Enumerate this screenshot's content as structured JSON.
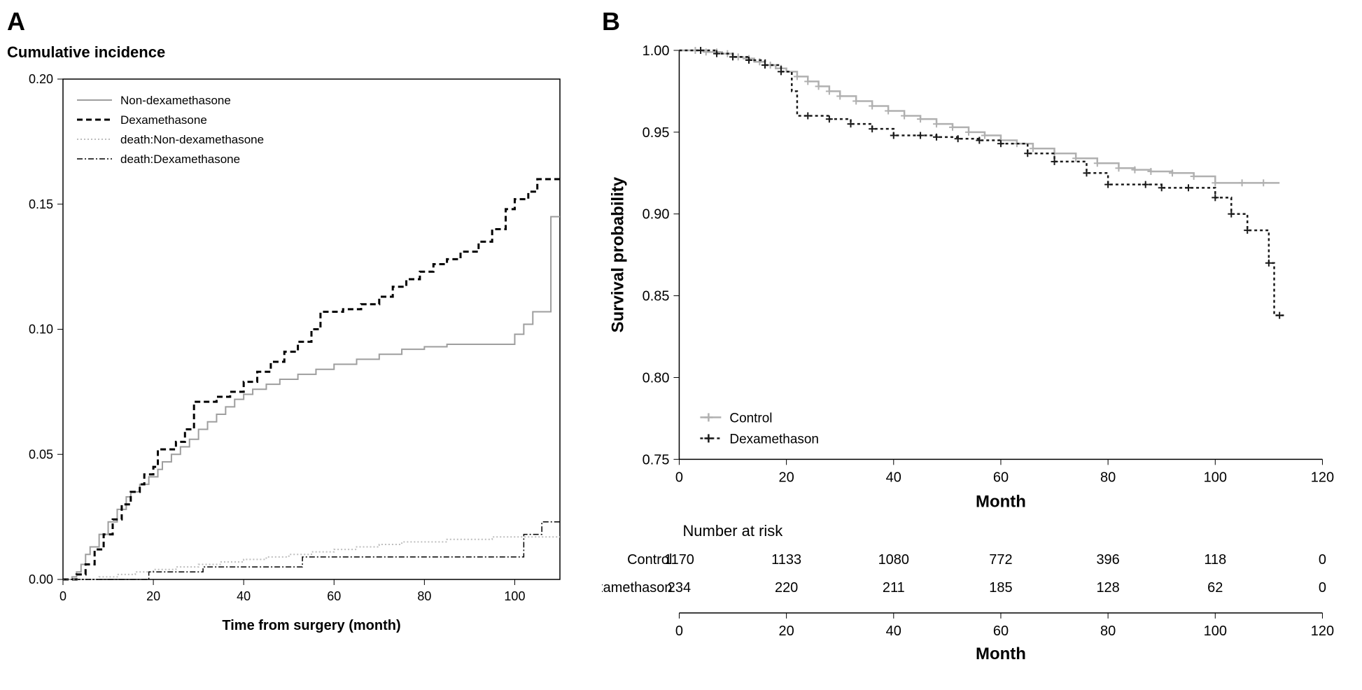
{
  "panelA": {
    "label": "A",
    "title": "Cumulative incidence",
    "type": "step-line",
    "xlabel": "Time from surgery (month)",
    "xlim": [
      0,
      110
    ],
    "xticks": [
      0,
      20,
      40,
      60,
      80,
      100
    ],
    "ylim": [
      0,
      0.2
    ],
    "yticks": [
      0.0,
      0.05,
      0.1,
      0.15,
      0.2
    ],
    "background_color": "#ffffff",
    "box_color": "#000000",
    "tick_fontsize": 18,
    "label_fontsize": 20,
    "label_fontweight": "bold",
    "legend_fontsize": 17,
    "legend": {
      "items": [
        {
          "label": "Non-dexamethasone",
          "color": "#9e9e9e",
          "dash": "solid",
          "width": 2
        },
        {
          "label": "Dexamethasone",
          "color": "#000000",
          "dash": "8,5",
          "width": 3
        },
        {
          "label": "death:Non-dexamethasone",
          "color": "#bdbdbd",
          "dash": "2,3",
          "width": 2
        },
        {
          "label": "death:Dexamethasone",
          "color": "#000000",
          "dash": "8,3,2,3",
          "width": 1.5
        }
      ]
    },
    "series": {
      "non_dex": {
        "color": "#9e9e9e",
        "dash": "none",
        "width": 2,
        "points": [
          [
            0,
            0
          ],
          [
            2,
            0.001
          ],
          [
            3,
            0.003
          ],
          [
            4,
            0.006
          ],
          [
            5,
            0.01
          ],
          [
            6,
            0.013
          ],
          [
            8,
            0.018
          ],
          [
            10,
            0.023
          ],
          [
            12,
            0.028
          ],
          [
            14,
            0.033
          ],
          [
            15,
            0.035
          ],
          [
            17,
            0.038
          ],
          [
            19,
            0.041
          ],
          [
            21,
            0.044
          ],
          [
            22,
            0.047
          ],
          [
            24,
            0.05
          ],
          [
            26,
            0.053
          ],
          [
            28,
            0.056
          ],
          [
            30,
            0.06
          ],
          [
            32,
            0.063
          ],
          [
            34,
            0.066
          ],
          [
            36,
            0.069
          ],
          [
            38,
            0.072
          ],
          [
            40,
            0.074
          ],
          [
            42,
            0.076
          ],
          [
            45,
            0.078
          ],
          [
            48,
            0.08
          ],
          [
            52,
            0.082
          ],
          [
            56,
            0.084
          ],
          [
            60,
            0.086
          ],
          [
            65,
            0.088
          ],
          [
            70,
            0.09
          ],
          [
            75,
            0.092
          ],
          [
            80,
            0.093
          ],
          [
            85,
            0.094
          ],
          [
            90,
            0.094
          ],
          [
            95,
            0.094
          ],
          [
            100,
            0.098
          ],
          [
            102,
            0.102
          ],
          [
            104,
            0.107
          ],
          [
            106,
            0.107
          ],
          [
            107,
            0.107
          ],
          [
            108,
            0.145
          ],
          [
            110,
            0.145
          ]
        ]
      },
      "dex": {
        "color": "#000000",
        "dash": "8,5",
        "width": 3,
        "points": [
          [
            0,
            0
          ],
          [
            3,
            0.002
          ],
          [
            5,
            0.006
          ],
          [
            7,
            0.012
          ],
          [
            9,
            0.018
          ],
          [
            11,
            0.024
          ],
          [
            13,
            0.03
          ],
          [
            15,
            0.035
          ],
          [
            17,
            0.038
          ],
          [
            18,
            0.042
          ],
          [
            20,
            0.045
          ],
          [
            21,
            0.052
          ],
          [
            23,
            0.052
          ],
          [
            25,
            0.055
          ],
          [
            27,
            0.06
          ],
          [
            29,
            0.071
          ],
          [
            30,
            0.071
          ],
          [
            34,
            0.073
          ],
          [
            37,
            0.075
          ],
          [
            40,
            0.079
          ],
          [
            43,
            0.083
          ],
          [
            46,
            0.087
          ],
          [
            49,
            0.091
          ],
          [
            52,
            0.095
          ],
          [
            55,
            0.1
          ],
          [
            57,
            0.107
          ],
          [
            58,
            0.107
          ],
          [
            62,
            0.108
          ],
          [
            66,
            0.11
          ],
          [
            70,
            0.113
          ],
          [
            73,
            0.117
          ],
          [
            76,
            0.12
          ],
          [
            79,
            0.123
          ],
          [
            82,
            0.126
          ],
          [
            85,
            0.128
          ],
          [
            88,
            0.131
          ],
          [
            92,
            0.135
          ],
          [
            95,
            0.14
          ],
          [
            98,
            0.148
          ],
          [
            100,
            0.152
          ],
          [
            103,
            0.155
          ],
          [
            105,
            0.16
          ],
          [
            108,
            0.16
          ],
          [
            110,
            0.16
          ]
        ]
      },
      "death_non_dex": {
        "color": "#bdbdbd",
        "dash": "2,3",
        "width": 2,
        "points": [
          [
            0,
            0
          ],
          [
            5,
            0
          ],
          [
            8,
            0.001
          ],
          [
            12,
            0.002
          ],
          [
            16,
            0.003
          ],
          [
            20,
            0.004
          ],
          [
            25,
            0.005
          ],
          [
            30,
            0.006
          ],
          [
            35,
            0.007
          ],
          [
            40,
            0.008
          ],
          [
            45,
            0.009
          ],
          [
            50,
            0.01
          ],
          [
            55,
            0.011
          ],
          [
            60,
            0.012
          ],
          [
            65,
            0.013
          ],
          [
            70,
            0.014
          ],
          [
            75,
            0.015
          ],
          [
            80,
            0.015
          ],
          [
            85,
            0.016
          ],
          [
            90,
            0.016
          ],
          [
            95,
            0.017
          ],
          [
            100,
            0.017
          ],
          [
            105,
            0.017
          ],
          [
            110,
            0.017
          ]
        ]
      },
      "death_dex": {
        "color": "#000000",
        "dash": "8,3,2,3",
        "width": 1.5,
        "points": [
          [
            0,
            0
          ],
          [
            10,
            0
          ],
          [
            18,
            0
          ],
          [
            19,
            0.003
          ],
          [
            30,
            0.003
          ],
          [
            31,
            0.005
          ],
          [
            45,
            0.005
          ],
          [
            52,
            0.005
          ],
          [
            53,
            0.009
          ],
          [
            75,
            0.009
          ],
          [
            95,
            0.009
          ],
          [
            100,
            0.009
          ],
          [
            102,
            0.018
          ],
          [
            105,
            0.018
          ],
          [
            106,
            0.023
          ],
          [
            110,
            0.023
          ]
        ]
      }
    }
  },
  "panelB": {
    "label": "B",
    "type": "kaplan-meier",
    "ylabel": "Survival probability",
    "xlabel": "Month",
    "xlim": [
      0,
      120
    ],
    "xticks": [
      0,
      20,
      40,
      60,
      80,
      100,
      120
    ],
    "ylim": [
      0.75,
      1.0
    ],
    "yticks": [
      0.75,
      0.8,
      0.85,
      0.9,
      0.95,
      1.0
    ],
    "background_color": "#ffffff",
    "axis_color": "#000000",
    "tick_fontsize": 20,
    "label_fontsize": 24,
    "label_fontweight": "bold",
    "legend_fontsize": 19,
    "legend": {
      "items": [
        {
          "label": "Control",
          "color": "#b0b0b0",
          "dash": "solid",
          "width": 2.5,
          "marker": "+"
        },
        {
          "label": "Dexamethason",
          "color": "#1a1a1a",
          "dash": "4,4",
          "width": 2.5,
          "marker": "+"
        }
      ]
    },
    "series": {
      "control": {
        "color": "#b0b0b0",
        "dash": "none",
        "width": 2.5,
        "points": [
          [
            0,
            1.0
          ],
          [
            3,
            1.0
          ],
          [
            5,
            0.999
          ],
          [
            8,
            0.998
          ],
          [
            10,
            0.996
          ],
          [
            12,
            0.995
          ],
          [
            14,
            0.993
          ],
          [
            16,
            0.991
          ],
          [
            18,
            0.989
          ],
          [
            20,
            0.987
          ],
          [
            22,
            0.984
          ],
          [
            24,
            0.981
          ],
          [
            26,
            0.978
          ],
          [
            28,
            0.975
          ],
          [
            30,
            0.972
          ],
          [
            33,
            0.969
          ],
          [
            36,
            0.966
          ],
          [
            39,
            0.963
          ],
          [
            42,
            0.96
          ],
          [
            45,
            0.958
          ],
          [
            48,
            0.955
          ],
          [
            51,
            0.953
          ],
          [
            54,
            0.95
          ],
          [
            57,
            0.948
          ],
          [
            60,
            0.945
          ],
          [
            63,
            0.943
          ],
          [
            66,
            0.94
          ],
          [
            70,
            0.937
          ],
          [
            74,
            0.934
          ],
          [
            78,
            0.931
          ],
          [
            82,
            0.928
          ],
          [
            85,
            0.927
          ],
          [
            88,
            0.926
          ],
          [
            92,
            0.925
          ],
          [
            96,
            0.923
          ],
          [
            100,
            0.919
          ],
          [
            105,
            0.919
          ],
          [
            112,
            0.919
          ]
        ],
        "censors": [
          3,
          5,
          7,
          9,
          11,
          13,
          15,
          17,
          19,
          22,
          24,
          26,
          28,
          30,
          33,
          36,
          39,
          42,
          45,
          48,
          51,
          54,
          57,
          60,
          63,
          66,
          70,
          74,
          78,
          82,
          85,
          88,
          92,
          96,
          100,
          105,
          109
        ]
      },
      "dexamethason": {
        "color": "#1a1a1a",
        "dash": "4,4",
        "width": 2.5,
        "points": [
          [
            0,
            1.0
          ],
          [
            4,
            1.0
          ],
          [
            7,
            0.998
          ],
          [
            10,
            0.996
          ],
          [
            13,
            0.994
          ],
          [
            16,
            0.991
          ],
          [
            19,
            0.987
          ],
          [
            21,
            0.975
          ],
          [
            22,
            0.96
          ],
          [
            24,
            0.96
          ],
          [
            28,
            0.958
          ],
          [
            32,
            0.955
          ],
          [
            36,
            0.952
          ],
          [
            40,
            0.948
          ],
          [
            42,
            0.948
          ],
          [
            45,
            0.948
          ],
          [
            48,
            0.947
          ],
          [
            52,
            0.946
          ],
          [
            56,
            0.945
          ],
          [
            60,
            0.943
          ],
          [
            65,
            0.937
          ],
          [
            70,
            0.932
          ],
          [
            72,
            0.932
          ],
          [
            76,
            0.925
          ],
          [
            80,
            0.918
          ],
          [
            83,
            0.918
          ],
          [
            87,
            0.918
          ],
          [
            90,
            0.916
          ],
          [
            95,
            0.916
          ],
          [
            100,
            0.91
          ],
          [
            103,
            0.9
          ],
          [
            106,
            0.89
          ],
          [
            108,
            0.89
          ],
          [
            110,
            0.87
          ],
          [
            111,
            0.838
          ],
          [
            113,
            0.838
          ]
        ],
        "censors": [
          4,
          7,
          10,
          13,
          16,
          19,
          24,
          28,
          32,
          36,
          40,
          45,
          48,
          52,
          56,
          60,
          65,
          70,
          76,
          80,
          87,
          90,
          95,
          100,
          103,
          106,
          110,
          112
        ]
      }
    },
    "risk_table": {
      "title": "Number at risk",
      "xlabel": "Month",
      "xticks": [
        0,
        20,
        40,
        60,
        80,
        100,
        120
      ],
      "rows": [
        {
          "label": "Control",
          "values": [
            1170,
            1133,
            1080,
            772,
            396,
            118,
            0
          ]
        },
        {
          "label": "Dexamethason",
          "values": [
            234,
            220,
            211,
            185,
            128,
            62,
            0
          ]
        }
      ],
      "fontsize": 20
    }
  }
}
